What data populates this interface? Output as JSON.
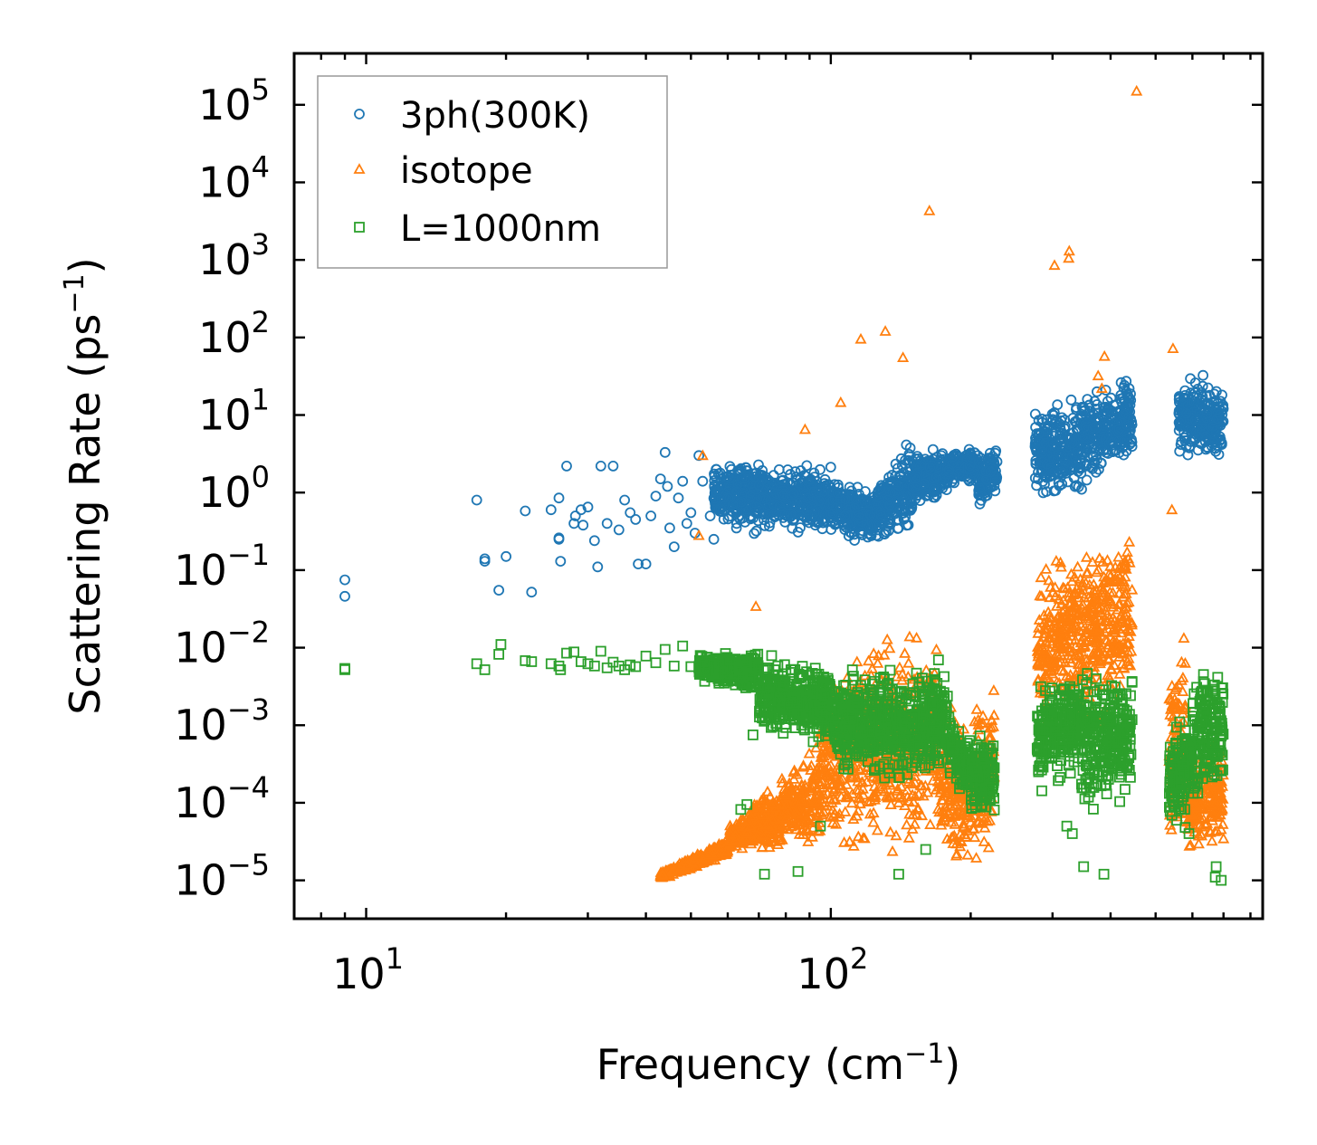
{
  "chart_data": {
    "type": "scatter",
    "xscale": "log",
    "yscale": "log",
    "xlabel": "Frequency (cm",
    "xlabel_sup": "−1",
    "xlabel_end": ")",
    "ylabel": "Scattering Rate (ps",
    "ylabel_sup": "−1",
    "ylabel_end": ")",
    "xlim": [
      7.0,
      850
    ],
    "ylim": [
      3.2e-06,
      460000.0
    ],
    "x_ticks": [
      {
        "value": 10,
        "base": "10",
        "exp": "1"
      },
      {
        "value": 100,
        "base": "10",
        "exp": "2"
      }
    ],
    "y_ticks": [
      {
        "value": 100000.0,
        "base": "10",
        "exp": "5"
      },
      {
        "value": 10000.0,
        "base": "10",
        "exp": "4"
      },
      {
        "value": 1000.0,
        "base": "10",
        "exp": "3"
      },
      {
        "value": 100.0,
        "base": "10",
        "exp": "2"
      },
      {
        "value": 10.0,
        "base": "10",
        "exp": "1"
      },
      {
        "value": 1.0,
        "base": "10",
        "exp": "0"
      },
      {
        "value": 0.1,
        "base": "10",
        "exp": "−1"
      },
      {
        "value": 0.01,
        "base": "10",
        "exp": "−2"
      },
      {
        "value": 0.001,
        "base": "10",
        "exp": "−3"
      },
      {
        "value": 0.0001,
        "base": "10",
        "exp": "−4"
      },
      {
        "value": 1e-05,
        "base": "10",
        "exp": "−5"
      }
    ],
    "legend_position": "upper-left",
    "series": [
      {
        "name": "3ph(300K)",
        "marker": "circle",
        "color": "#1f77b4",
        "points": [
          [
            9.0,
            0.075
          ],
          [
            9.0,
            0.046
          ],
          [
            17.3,
            0.8
          ],
          [
            18.0,
            0.13
          ],
          [
            18.0,
            0.14
          ],
          [
            19.3,
            0.055
          ],
          [
            20.0,
            0.15
          ],
          [
            22.0,
            0.58
          ],
          [
            22.7,
            0.052
          ],
          [
            25.0,
            0.6
          ],
          [
            26.0,
            0.85
          ],
          [
            26.0,
            0.26
          ],
          [
            26.0,
            0.25
          ],
          [
            26.2,
            0.13
          ],
          [
            27.0,
            2.2
          ],
          [
            28.0,
            0.4
          ],
          [
            28.2,
            0.5
          ],
          [
            29.0,
            0.6
          ],
          [
            29.3,
            0.38
          ],
          [
            30.0,
            0.65
          ],
          [
            31.0,
            0.24
          ],
          [
            31.5,
            0.11
          ],
          [
            32.0,
            2.2
          ],
          [
            33.0,
            0.4
          ],
          [
            34.0,
            2.2
          ],
          [
            35.0,
            0.33
          ],
          [
            36.0,
            0.8
          ],
          [
            37.0,
            0.55
          ],
          [
            38.0,
            0.45
          ],
          [
            38.5,
            0.12
          ],
          [
            40.0,
            0.12
          ],
          [
            41.0,
            0.5
          ],
          [
            42.0,
            0.9
          ],
          [
            43.0,
            1.5
          ],
          [
            44.0,
            3.3
          ],
          [
            44.5,
            1.2
          ],
          [
            45.0,
            0.35
          ],
          [
            46.0,
            0.2
          ],
          [
            47.0,
            0.85
          ],
          [
            48.0,
            1.4
          ],
          [
            49.0,
            0.4
          ],
          [
            50.0,
            0.55
          ],
          [
            51.0,
            0.3
          ],
          [
            52.0,
            3.0
          ],
          [
            53.0,
            1.4
          ],
          [
            55.0,
            0.5
          ],
          [
            56.0,
            0.25
          ]
        ],
        "dense_bands": [
          {
            "x": [
              56,
              100
            ],
            "lo": [
              0.28,
              0.25
            ],
            "hi": [
              3.2,
              2.5
            ]
          },
          {
            "x": [
              100,
              125
            ],
            "lo": [
              0.24,
              0.2
            ],
            "hi": [
              2.0,
              1.2
            ]
          },
          {
            "x": [
              125,
              150
            ],
            "lo": [
              0.2,
              0.22
            ],
            "hi": [
              1.5,
              7.0
            ]
          },
          {
            "x": [
              150,
              178
            ],
            "lo": [
              0.5,
              0.8
            ],
            "hi": [
              4.5,
              4.0
            ]
          },
          {
            "x": [
              178,
              208
            ],
            "lo": [
              1.2,
              1.3
            ],
            "hi": [
              3.6,
              4.2
            ]
          },
          {
            "x": [
              208,
              228
            ],
            "lo": [
              0.5,
              0.8
            ],
            "hi": [
              3.0,
              5.0
            ]
          },
          {
            "x": [
              275,
              345
            ],
            "lo": [
              0.9,
              0.6
            ],
            "hi": [
              15,
              20
            ]
          },
          {
            "x": [
              345,
              400
            ],
            "lo": [
              0.8,
              1.8
            ],
            "hi": [
              22,
              25
            ]
          },
          {
            "x": [
              400,
              445
            ],
            "lo": [
              1.5,
              2.2
            ],
            "hi": [
              28,
              38
            ]
          },
          {
            "x": [
              560,
              640
            ],
            "lo": [
              2.0,
              2.2
            ],
            "hi": [
              40,
              45
            ]
          },
          {
            "x": [
              640,
              700
            ],
            "lo": [
              2.0,
              2.5
            ],
            "hi": [
              30,
              28
            ]
          }
        ]
      },
      {
        "name": "isotope",
        "marker": "triangle",
        "color": "#ff7f0e",
        "points": [
          [
            53.0,
            3.0
          ],
          [
            52.0,
            0.28
          ],
          [
            69.0,
            0.034
          ],
          [
            88.0,
            6.5
          ],
          [
            105.0,
            14.5
          ],
          [
            116.0,
            95
          ],
          [
            131.0,
            120
          ],
          [
            143.0,
            55
          ],
          [
            163.0,
            4300
          ],
          [
            303.0,
            850
          ],
          [
            325.0,
            1050
          ],
          [
            326.0,
            1300
          ],
          [
            376.0,
            32
          ],
          [
            383.0,
            22
          ],
          [
            388.0,
            57
          ],
          [
            455.0,
            150000
          ],
          [
            545.0,
            72
          ],
          [
            542.0,
            0.6
          ],
          [
            350.0,
            0.0025
          ],
          [
            380.0,
            0.0011
          ]
        ],
        "dense_bands": [
          {
            "x": [
              43,
              60
            ],
            "lo": [
              1e-05,
              2e-05
            ],
            "hi": [
              1.3e-05,
              3.5e-05
            ]
          },
          {
            "x": [
              60,
              95
            ],
            "lo": [
              2.5e-05,
              2e-05
            ],
            "hi": [
              5e-05,
              0.0008
            ]
          },
          {
            "x": [
              95,
              130
            ],
            "lo": [
              1e-05,
              2e-05
            ],
            "hi": [
              0.008,
              0.02
            ]
          },
          {
            "x": [
              130,
              170
            ],
            "lo": [
              1e-05,
              2e-05
            ],
            "hi": [
              0.02,
              0.04
            ]
          },
          {
            "x": [
              170,
              200
            ],
            "lo": [
              1.5e-05,
              1e-05
            ],
            "hi": [
              0.003,
              0.0015
            ]
          },
          {
            "x": [
              200,
              225
            ],
            "lo": [
              1e-05,
              1.5e-05
            ],
            "hi": [
              0.0015,
              0.006
            ]
          },
          {
            "x": [
              278,
              345
            ],
            "lo": [
              0.0005,
              0.001
            ],
            "hi": [
              0.15,
              0.35
            ]
          },
          {
            "x": [
              345,
              445
            ],
            "lo": [
              0.0008,
              0.0012
            ],
            "hi": [
              0.3,
              0.6
            ]
          },
          {
            "x": [
              535,
              580
            ],
            "lo": [
              1.5e-05,
              2e-05
            ],
            "hi": [
              0.01,
              0.03
            ]
          },
          {
            "x": [
              580,
              700
            ],
            "lo": [
              1.5e-05,
              2e-05
            ],
            "hi": [
              0.0005,
              0.0008
            ]
          }
        ]
      },
      {
        "name": "L=1000nm",
        "marker": "square",
        "color": "#2ca02c",
        "points": [
          [
            9.0,
            0.0052
          ],
          [
            9.0,
            0.0054
          ],
          [
            17.3,
            0.0062
          ],
          [
            18.0,
            0.0052
          ],
          [
            19.3,
            0.0082
          ],
          [
            19.5,
            0.011
          ],
          [
            22.0,
            0.0068
          ],
          [
            22.7,
            0.0066
          ],
          [
            25.0,
            0.0062
          ],
          [
            26.0,
            0.0058
          ],
          [
            26.2,
            0.0052
          ],
          [
            27.0,
            0.0085
          ],
          [
            28.0,
            0.0088
          ],
          [
            29.0,
            0.0066
          ],
          [
            30.0,
            0.0062
          ],
          [
            31.0,
            0.0058
          ],
          [
            32.0,
            0.009
          ],
          [
            33.0,
            0.0055
          ],
          [
            34.0,
            0.0065
          ],
          [
            35.0,
            0.0058
          ],
          [
            36.0,
            0.0052
          ],
          [
            37.0,
            0.006
          ],
          [
            38.0,
            0.0057
          ],
          [
            40.0,
            0.0078
          ],
          [
            42.0,
            0.0064
          ],
          [
            44.0,
            0.0095
          ],
          [
            46.0,
            0.0058
          ],
          [
            48.0,
            0.0105
          ],
          [
            50.0,
            0.0057
          ],
          [
            52.0,
            0.0055
          ],
          [
            64.0,
            8.2e-05
          ],
          [
            66.0,
            9.5e-05
          ],
          [
            68.0,
            0.00075
          ],
          [
            72.0,
            1.2e-05
          ],
          [
            85.0,
            1.3e-05
          ],
          [
            95.0,
            5e-05
          ],
          [
            140.0,
            1.2e-05
          ],
          [
            160.0,
            2.5e-05
          ],
          [
            350.0,
            1.5e-05
          ],
          [
            387.0,
            1.2e-05
          ],
          [
            322.0,
            5e-05
          ],
          [
            331.0,
            4e-05
          ],
          [
            590.0,
            4e-05
          ],
          [
            672.0,
            1.1e-05
          ],
          [
            675.0,
            1.5e-05
          ],
          [
            692.0,
            1e-05
          ]
        ],
        "dense_bands": [
          {
            "x": [
              52,
              70
            ],
            "lo": [
              0.0035,
              0.0025
            ],
            "hi": [
              0.009,
              0.0095
            ]
          },
          {
            "x": [
              70,
              100
            ],
            "lo": [
              0.0008,
              0.0004
            ],
            "hi": [
              0.009,
              0.007
            ]
          },
          {
            "x": [
              100,
              140
            ],
            "lo": [
              0.0002,
              0.00015
            ],
            "hi": [
              0.006,
              0.007
            ]
          },
          {
            "x": [
              140,
              180
            ],
            "lo": [
              0.0001,
              0.0002
            ],
            "hi": [
              0.007,
              0.008
            ]
          },
          {
            "x": [
              180,
              200
            ],
            "lo": [
              0.0002,
              0.0001
            ],
            "hi": [
              0.0012,
              0.001
            ]
          },
          {
            "x": [
              200,
              225
            ],
            "lo": [
              5e-05,
              6e-05
            ],
            "hi": [
              0.0012,
              0.0008
            ]
          },
          {
            "x": [
              278,
              345
            ],
            "lo": [
              0.0001,
              0.0002
            ],
            "hi": [
              0.005,
              0.007
            ]
          },
          {
            "x": [
              345,
              445
            ],
            "lo": [
              5e-05,
              0.0001
            ],
            "hi": [
              0.008,
              0.005
            ]
          },
          {
            "x": [
              535,
              600
            ],
            "lo": [
              3e-05,
              5e-05
            ],
            "hi": [
              0.001,
              0.003
            ]
          },
          {
            "x": [
              600,
              700
            ],
            "lo": [
              5e-05,
              0.0001
            ],
            "hi": [
              0.009,
              0.008
            ]
          }
        ]
      }
    ]
  }
}
